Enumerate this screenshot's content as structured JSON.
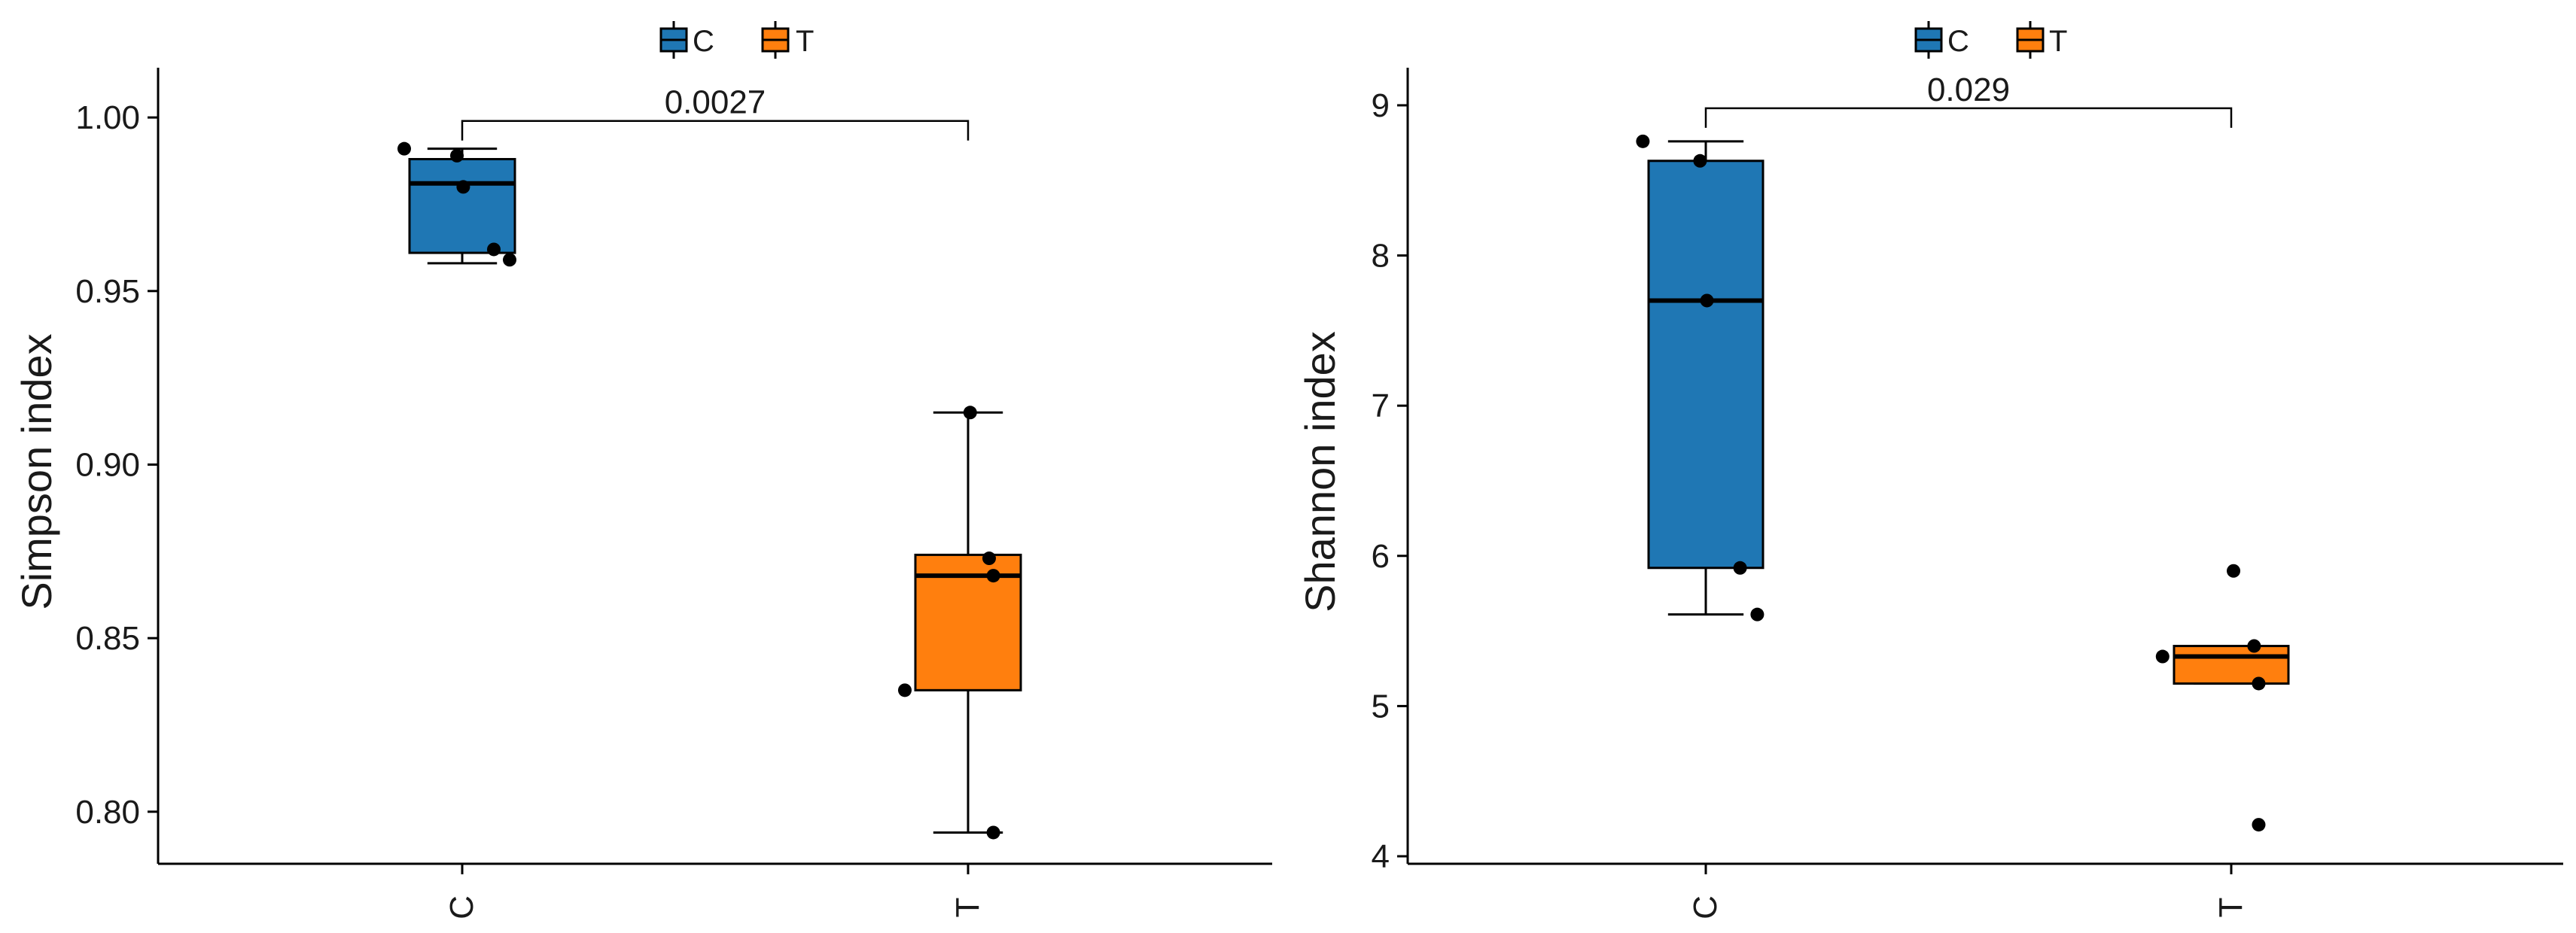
{
  "colors": {
    "C": "#1f77b4",
    "T": "#ff7f0e",
    "ink": "#000000"
  },
  "chart_data": [
    {
      "type": "box",
      "title": "",
      "xlabel": "",
      "ylabel": "Simpson index",
      "ylim": [
        0.785,
        1.01
      ],
      "yticks": [
        0.8,
        0.85,
        0.9,
        0.95,
        1.0
      ],
      "ytick_labels": [
        "0.80",
        "0.85",
        "0.90",
        "0.95",
        "1.00"
      ],
      "categories": [
        "C",
        "T"
      ],
      "legend": {
        "position": "top",
        "entries": [
          "C",
          "T"
        ]
      },
      "groups": [
        {
          "name": "C",
          "whisker_low": 0.958,
          "q1": 0.961,
          "median": 0.981,
          "q3": 0.988,
          "whisker_high": 0.991,
          "points": [
            0.991,
            0.989,
            0.98,
            0.962,
            0.959
          ]
        },
        {
          "name": "T",
          "whisker_low": 0.794,
          "q1": 0.835,
          "median": 0.868,
          "q3": 0.874,
          "whisker_high": 0.915,
          "points": [
            0.835,
            0.915,
            0.873,
            0.868,
            0.794
          ]
        }
      ],
      "comparison": {
        "from": "C",
        "to": "T",
        "label": "0.0027",
        "y": 0.999
      }
    },
    {
      "type": "box",
      "title": "",
      "xlabel": "",
      "ylabel": "Shannon index",
      "ylim": [
        3.95,
        9.15
      ],
      "yticks": [
        4,
        5,
        6,
        7,
        8,
        9
      ],
      "ytick_labels": [
        "4",
        "5",
        "6",
        "7",
        "8",
        "9"
      ],
      "categories": [
        "C",
        "T"
      ],
      "legend": {
        "position": "top",
        "entries": [
          "C",
          "T"
        ]
      },
      "groups": [
        {
          "name": "C",
          "whisker_low": 5.61,
          "q1": 5.92,
          "median": 7.7,
          "q3": 8.63,
          "whisker_high": 8.76,
          "points": [
            8.76,
            8.63,
            7.7,
            5.92,
            5.61
          ]
        },
        {
          "name": "T",
          "whisker_low": 5.15,
          "q1": 5.15,
          "median": 5.33,
          "q3": 5.4,
          "whisker_high": 5.4,
          "points": [
            5.33,
            5.9,
            5.4,
            5.15,
            4.21
          ]
        }
      ],
      "comparison": {
        "from": "C",
        "to": "T",
        "label": "0.029",
        "y": 8.98
      }
    }
  ]
}
